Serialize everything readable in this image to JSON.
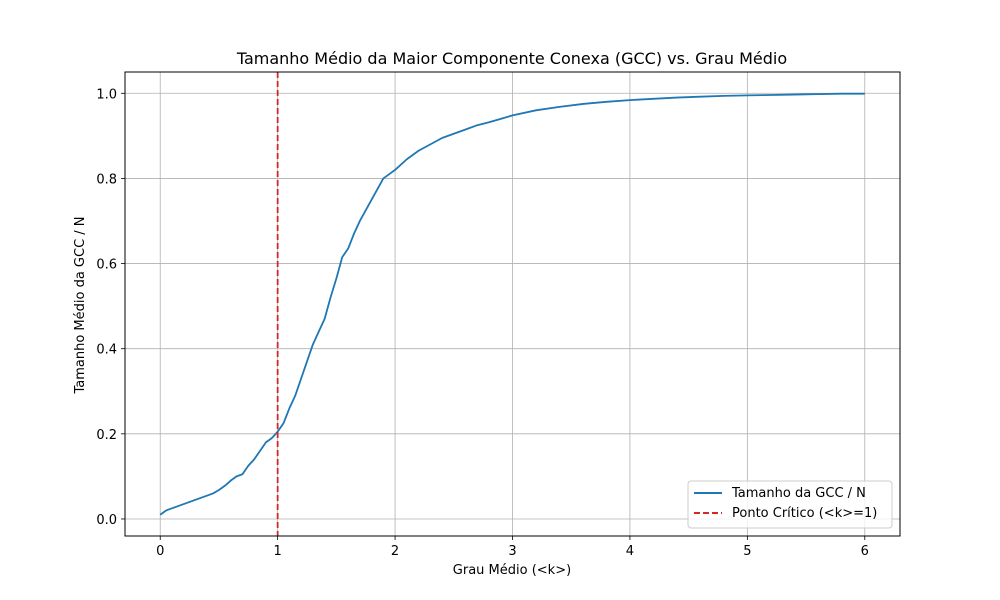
{
  "chart_data": {
    "type": "line",
    "title": "Tamanho Médio da Maior Componente Conexa (GCC) vs. Grau Médio",
    "xlabel": "Grau Médio (<k>)",
    "ylabel": "Tamanho Médio da GCC / N",
    "xlim": [
      -0.3,
      6.3
    ],
    "ylim": [
      -0.04,
      1.05
    ],
    "xticks": [
      0,
      1,
      2,
      3,
      4,
      5,
      6
    ],
    "xtick_labels": [
      "0",
      "1",
      "2",
      "3",
      "4",
      "5",
      "6"
    ],
    "yticks": [
      0.0,
      0.2,
      0.4,
      0.6,
      0.8,
      1.0
    ],
    "ytick_labels": [
      "0.0",
      "0.2",
      "0.4",
      "0.6",
      "0.8",
      "1.0"
    ],
    "grid": true,
    "legend_position": "bottom-right",
    "series": [
      {
        "name": "Tamanho da GCC / N",
        "color": "#1f77b4",
        "style": "solid",
        "x": [
          0,
          0.05,
          0.1,
          0.15,
          0.2,
          0.25,
          0.3,
          0.35,
          0.4,
          0.45,
          0.5,
          0.55,
          0.6,
          0.65,
          0.7,
          0.75,
          0.8,
          0.85,
          0.9,
          0.95,
          1.0,
          1.05,
          1.1,
          1.15,
          1.2,
          1.25,
          1.3,
          1.35,
          1.4,
          1.45,
          1.5,
          1.55,
          1.6,
          1.65,
          1.7,
          1.75,
          1.8,
          1.85,
          1.9,
          1.95,
          2.0,
          2.1,
          2.2,
          2.3,
          2.4,
          2.5,
          2.6,
          2.7,
          2.8,
          2.9,
          3.0,
          3.2,
          3.4,
          3.6,
          3.8,
          4.0,
          4.2,
          4.4,
          4.6,
          4.8,
          5.0,
          5.2,
          5.4,
          5.6,
          5.8,
          6.0
        ],
        "y": [
          0.01,
          0.02,
          0.025,
          0.03,
          0.035,
          0.04,
          0.045,
          0.05,
          0.055,
          0.06,
          0.068,
          0.078,
          0.09,
          0.1,
          0.105,
          0.125,
          0.14,
          0.16,
          0.18,
          0.19,
          0.205,
          0.225,
          0.26,
          0.29,
          0.33,
          0.37,
          0.41,
          0.44,
          0.47,
          0.52,
          0.565,
          0.615,
          0.635,
          0.67,
          0.7,
          0.725,
          0.75,
          0.775,
          0.8,
          0.81,
          0.82,
          0.845,
          0.865,
          0.88,
          0.895,
          0.905,
          0.915,
          0.925,
          0.932,
          0.94,
          0.948,
          0.96,
          0.968,
          0.975,
          0.98,
          0.984,
          0.987,
          0.99,
          0.992,
          0.994,
          0.995,
          0.996,
          0.997,
          0.998,
          0.999,
          0.999
        ]
      },
      {
        "name": "Ponto Crítico (<k>=1)",
        "color": "#d62728",
        "style": "dashed",
        "vertical_line_x": 1
      }
    ]
  }
}
